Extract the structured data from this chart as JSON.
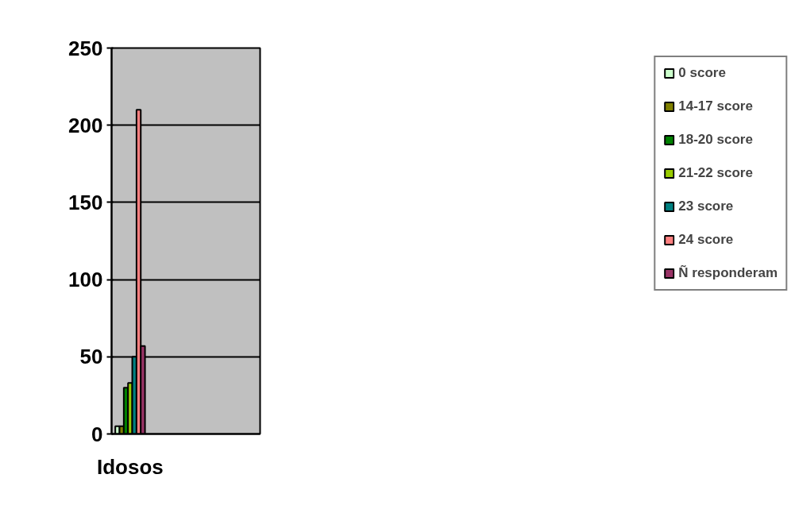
{
  "chart_data": {
    "type": "bar",
    "categories": [
      "Idosos",
      null,
      null,
      null
    ],
    "series": [
      {
        "name": "0 score",
        "color": "#ccffcc",
        "values": [
          5,
          null,
          null,
          null
        ]
      },
      {
        "name": "14-17 score",
        "color": "#808000",
        "values": [
          5,
          null,
          null,
          null
        ]
      },
      {
        "name": "18-20 score",
        "color": "#008000",
        "values": [
          30,
          null,
          null,
          null
        ]
      },
      {
        "name": "21-22 score",
        "color": "#99cc00",
        "values": [
          33,
          null,
          null,
          null
        ]
      },
      {
        "name": "23 score",
        "color": "#008080",
        "values": [
          50,
          null,
          null,
          null
        ]
      },
      {
        "name": "24 score",
        "color": "#ff8080",
        "values": [
          210,
          null,
          null,
          null
        ]
      },
      {
        "name": "Ñ responderam",
        "color": "#993366",
        "values": [
          57,
          null,
          null,
          null
        ]
      }
    ],
    "ylim": [
      0,
      250
    ],
    "yticks": [
      0,
      50,
      100,
      150,
      200,
      250
    ],
    "grid": "y",
    "legend": "right"
  }
}
